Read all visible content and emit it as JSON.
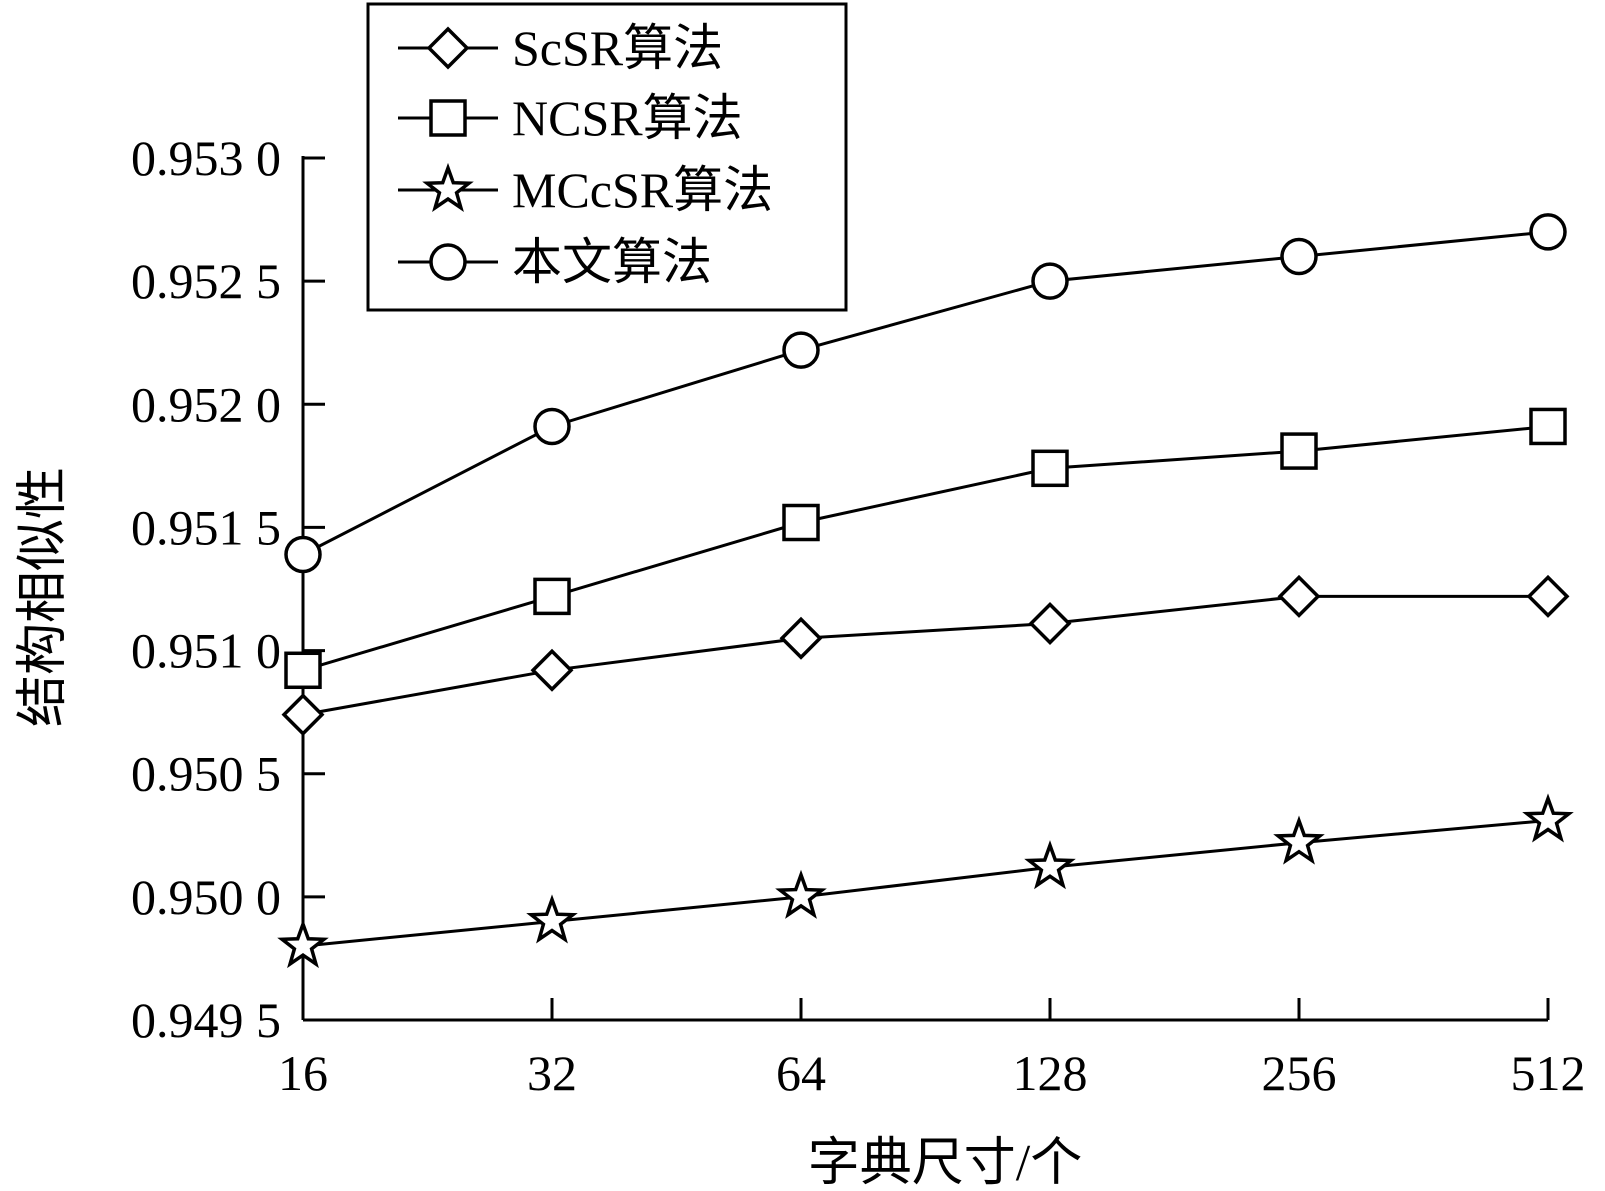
{
  "chart_data": {
    "type": "line",
    "xlabel": "字典尺寸/个",
    "ylabel": "结构相似性",
    "categories": [
      "16",
      "32",
      "64",
      "128",
      "256",
      "512"
    ],
    "ylim": [
      0.9495,
      0.953
    ],
    "yticks": [
      "0.949 5",
      "0.950 0",
      "0.950 5",
      "0.951 0",
      "0.951 5",
      "0.952 0",
      "0.952 5",
      "0.953 0"
    ],
    "grid": false,
    "legend_position": "top-left",
    "series": [
      {
        "name": "ScSR算法",
        "marker": "diamond",
        "values": [
          0.95074,
          0.95092,
          0.95105,
          0.95111,
          0.95122,
          0.95122
        ]
      },
      {
        "name": "NCSR算法",
        "marker": "square",
        "values": [
          0.95092,
          0.95122,
          0.95152,
          0.95174,
          0.95181,
          0.95191
        ]
      },
      {
        "name": "MCcSR算法",
        "marker": "star",
        "values": [
          0.9498,
          0.9499,
          0.95,
          0.95012,
          0.95022,
          0.95031
        ]
      },
      {
        "name": "本文算法",
        "marker": "circle",
        "values": [
          0.95139,
          0.95191,
          0.95222,
          0.9525,
          0.9526,
          0.9527
        ]
      }
    ]
  }
}
